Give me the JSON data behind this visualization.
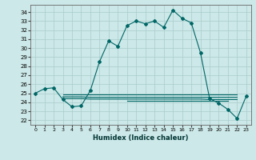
{
  "title": "",
  "xlabel": "Humidex (Indice chaleur)",
  "ylabel": "",
  "bg_color": "#cce8e8",
  "grid_color": "#aacccc",
  "line_color": "#006666",
  "xlim": [
    -0.5,
    23.5
  ],
  "ylim": [
    21.5,
    34.8
  ],
  "yticks": [
    22,
    23,
    24,
    25,
    26,
    27,
    28,
    29,
    30,
    31,
    32,
    33,
    34
  ],
  "xticks": [
    0,
    1,
    2,
    3,
    4,
    5,
    6,
    7,
    8,
    9,
    10,
    11,
    12,
    13,
    14,
    15,
    16,
    17,
    18,
    19,
    20,
    21,
    22,
    23
  ],
  "main_line": [
    25.0,
    25.5,
    25.6,
    24.3,
    23.5,
    23.6,
    25.3,
    28.5,
    30.8,
    30.2,
    32.5,
    33.0,
    32.7,
    33.0,
    32.3,
    34.2,
    33.3,
    32.8,
    29.5,
    24.4,
    23.9,
    23.2,
    22.2,
    24.7
  ],
  "flat_line1": [
    null,
    null,
    null,
    24.85,
    24.85,
    24.85,
    24.85,
    24.85,
    24.85,
    24.85,
    24.85,
    24.85,
    24.85,
    24.85,
    24.85,
    24.85,
    24.85,
    24.85,
    24.85,
    24.85,
    24.85,
    24.85,
    24.85,
    null
  ],
  "flat_line2": [
    null,
    null,
    null,
    24.6,
    24.6,
    24.6,
    24.55,
    24.55,
    24.55,
    24.55,
    24.55,
    24.55,
    24.55,
    24.55,
    24.55,
    24.55,
    24.55,
    24.55,
    24.55,
    24.55,
    24.55,
    24.55,
    24.55,
    null
  ],
  "flat_line3": [
    null,
    null,
    null,
    24.4,
    24.4,
    24.4,
    24.35,
    24.35,
    24.35,
    24.35,
    24.35,
    24.35,
    24.35,
    24.35,
    24.35,
    24.35,
    24.35,
    24.35,
    24.35,
    24.3,
    24.3,
    24.3,
    24.3,
    null
  ],
  "flat_line4": [
    null,
    null,
    null,
    null,
    null,
    null,
    null,
    null,
    null,
    null,
    24.15,
    24.15,
    24.15,
    24.15,
    24.15,
    24.15,
    24.15,
    24.15,
    24.15,
    24.15,
    24.15,
    24.15,
    null,
    null
  ]
}
